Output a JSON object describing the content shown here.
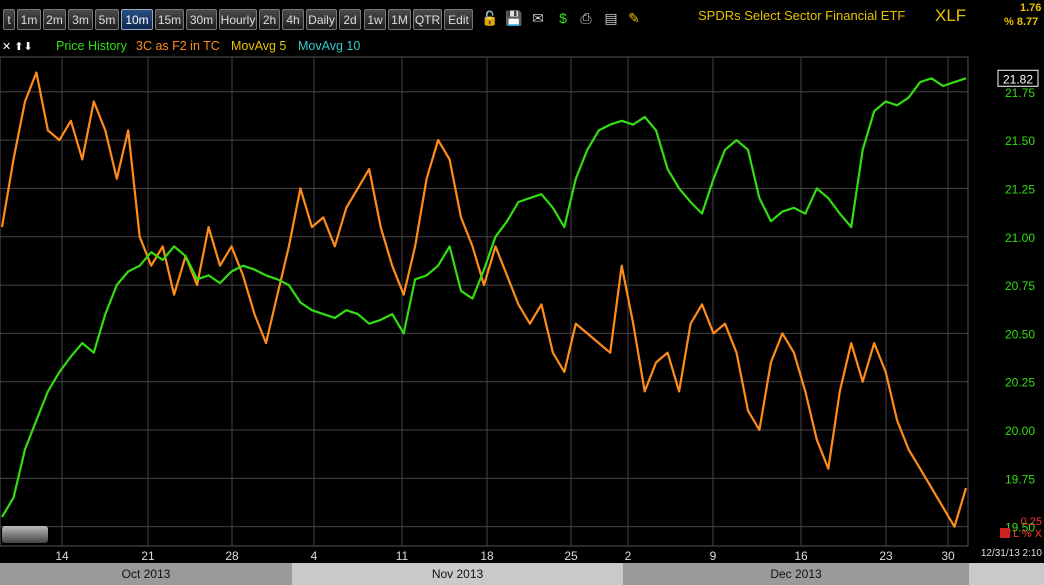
{
  "toolbar": {
    "buttons": [
      "t",
      "1m",
      "2m",
      "3m",
      "5m",
      "10m",
      "15m",
      "30m",
      "Hourly",
      "2h",
      "4h",
      "Daily",
      "2d",
      "1w",
      "1M",
      "QTR",
      "Edit"
    ],
    "active": "10m"
  },
  "header": {
    "title": "SPDRs Select Sector Financial ETF",
    "symbol": "XLF",
    "change": "1.76",
    "percent": "% 8.77"
  },
  "legend": {
    "controls": "✕ ⬆⬇",
    "price": "Price History",
    "indicator": "3C as F2 in TC",
    "ma5": "MovAvg 5",
    "ma10": "MovAvg 10"
  },
  "colors": {
    "price": "#33dd11",
    "indicator": "#ff8c1a",
    "axis": "#33dd11",
    "ma5": "#e6c200",
    "ma10": "#33cccc"
  },
  "last_price_label": "21.82",
  "bottom": {
    "indicator_value": "0.25",
    "indicator_tools": "L % X",
    "timestamp": "12/31/13 2:10"
  },
  "months": [
    "Oct 2013",
    "Nov 2013",
    "Dec 2013"
  ],
  "chart_data": {
    "type": "line",
    "x_tick_labels": [
      "14",
      "21",
      "28",
      "4",
      "11",
      "18",
      "25",
      "2",
      "9",
      "16",
      "23",
      "30"
    ],
    "y_tick_labels": [
      "21.75",
      "21.50",
      "21.25",
      "21.00",
      "20.75",
      "20.50",
      "20.25",
      "20.00",
      "19.75",
      "19.50"
    ],
    "ylim": [
      19.4,
      21.93
    ],
    "grid": true,
    "series": [
      {
        "name": "Price History",
        "axis": "right",
        "values": [
          19.55,
          19.65,
          19.9,
          20.05,
          20.2,
          20.3,
          20.38,
          20.45,
          20.4,
          20.6,
          20.75,
          20.82,
          20.85,
          20.92,
          20.88,
          20.95,
          20.9,
          20.78,
          20.8,
          20.76,
          20.82,
          20.85,
          20.83,
          20.8,
          20.78,
          20.75,
          20.66,
          20.62,
          20.6,
          20.58,
          20.62,
          20.6,
          20.55,
          20.57,
          20.6,
          20.5,
          20.78,
          20.8,
          20.85,
          20.95,
          20.72,
          20.68,
          20.83,
          21.0,
          21.08,
          21.18,
          21.2,
          21.22,
          21.15,
          21.05,
          21.3,
          21.45,
          21.55,
          21.58,
          21.6,
          21.58,
          21.62,
          21.55,
          21.35,
          21.25,
          21.18,
          21.12,
          21.3,
          21.45,
          21.5,
          21.45,
          21.2,
          21.08,
          21.13,
          21.15,
          21.12,
          21.25,
          21.2,
          21.12,
          21.05,
          21.45,
          21.65,
          21.7,
          21.68,
          21.72,
          21.8,
          21.82,
          21.78,
          21.8,
          21.82
        ]
      },
      {
        "name": "3C as F2 in TC",
        "values": [
          21.05,
          21.4,
          21.7,
          21.85,
          21.55,
          21.5,
          21.6,
          21.4,
          21.7,
          21.55,
          21.3,
          21.55,
          21.0,
          20.85,
          20.95,
          20.7,
          20.9,
          20.75,
          21.05,
          20.85,
          20.95,
          20.8,
          20.6,
          20.45,
          20.7,
          20.95,
          21.25,
          21.05,
          21.1,
          20.95,
          21.15,
          21.25,
          21.35,
          21.05,
          20.85,
          20.7,
          20.95,
          21.3,
          21.5,
          21.4,
          21.1,
          20.95,
          20.75,
          20.95,
          20.8,
          20.65,
          20.55,
          20.65,
          20.4,
          20.3,
          20.55,
          20.5,
          20.45,
          20.4,
          20.85,
          20.55,
          20.2,
          20.35,
          20.4,
          20.2,
          20.55,
          20.65,
          20.5,
          20.55,
          20.4,
          20.1,
          20.0,
          20.35,
          20.5,
          20.4,
          20.2,
          19.95,
          19.8,
          20.2,
          20.45,
          20.25,
          20.45,
          20.3,
          20.05,
          19.9,
          19.8,
          19.7,
          19.6,
          19.5,
          19.7
        ]
      }
    ]
  }
}
